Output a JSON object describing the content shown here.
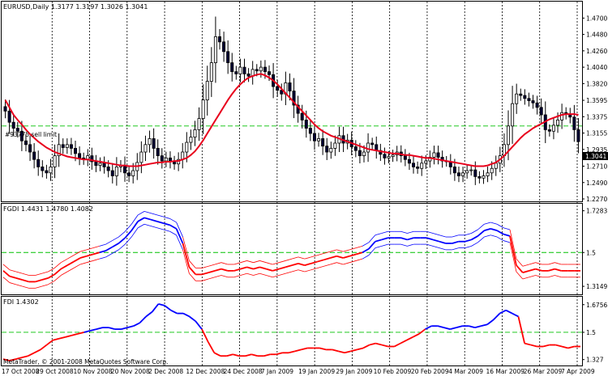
{
  "window": {
    "main_title": "EURUSD,Daily  1.3177 1.3197 1.3026 1.3041",
    "current_price": "1.3041",
    "order_label": "#93775 sell limit",
    "copyright": "MetaTrader, © 2001-2008 MetaQuotes Software Corp."
  },
  "colors": {
    "bull_candle": "#ffffff",
    "bear_candle": "#000033",
    "ma_line": "#e8001c",
    "fgdi_blue": "#0000ff",
    "fgdi_red": "#ff0000",
    "level_line": "#00c000",
    "grid": "#000000"
  },
  "chart_data": [
    {
      "type": "candlestick",
      "pane": "main",
      "title": "EURUSD,Daily",
      "ohlc_header": "1.3177 1.3197 1.3026 1.3041",
      "y_ticks": [
        "1.4700",
        "1.4480",
        "1.4260",
        "1.4040",
        "1.3820",
        "1.3595",
        "1.3375",
        "1.3155",
        "1.2935",
        "1.2710",
        "1.2490",
        "1.2270"
      ],
      "ylim": [
        1.227,
        1.478
      ],
      "order_level": 1.325,
      "order_label": "#93775 sell limit",
      "close_series": [
        1.345,
        1.33,
        1.322,
        1.318,
        1.305,
        1.3,
        1.29,
        1.28,
        1.27,
        1.265,
        1.262,
        1.27,
        1.285,
        1.3,
        1.296,
        1.3,
        1.295,
        1.288,
        1.282,
        1.28,
        1.285,
        1.277,
        1.272,
        1.275,
        1.27,
        1.265,
        1.258,
        1.27,
        1.272,
        1.262,
        1.258,
        1.265,
        1.276,
        1.29,
        1.3,
        1.308,
        1.295,
        1.285,
        1.278,
        1.282,
        1.277,
        1.274,
        1.28,
        1.29,
        1.303,
        1.31,
        1.32,
        1.335,
        1.36,
        1.385,
        1.41,
        1.445,
        1.438,
        1.425,
        1.41,
        1.398,
        1.395,
        1.404,
        1.395,
        1.392,
        1.401,
        1.399,
        1.404,
        1.398,
        1.394,
        1.378,
        1.373,
        1.368,
        1.383,
        1.372,
        1.353,
        1.342,
        1.333,
        1.322,
        1.315,
        1.305,
        1.308,
        1.298,
        1.29,
        1.295,
        1.302,
        1.312,
        1.302,
        1.306,
        1.297,
        1.292,
        1.285,
        1.29,
        1.302,
        1.3,
        1.292,
        1.287,
        1.282,
        1.284,
        1.286,
        1.29,
        1.285,
        1.28,
        1.275,
        1.27,
        1.268,
        1.275,
        1.278,
        1.283,
        1.289,
        1.283,
        1.278,
        1.277,
        1.27,
        1.262,
        1.258,
        1.262,
        1.265,
        1.266,
        1.257,
        1.255,
        1.258,
        1.262,
        1.268,
        1.275,
        1.285,
        1.3,
        1.325,
        1.355,
        1.368,
        1.366,
        1.362,
        1.359,
        1.356,
        1.35,
        1.34,
        1.32,
        1.318,
        1.326,
        1.333,
        1.343,
        1.341,
        1.337,
        1.32,
        1.304
      ],
      "ma_series": [
        1.36,
        1.35,
        1.34,
        1.333,
        1.327,
        1.32,
        1.314,
        1.309,
        1.304,
        1.3,
        1.296,
        1.293,
        1.29,
        1.288,
        1.286,
        1.284,
        1.283,
        1.282,
        1.281,
        1.28,
        1.28,
        1.279,
        1.278,
        1.277,
        1.276,
        1.275,
        1.274,
        1.273,
        1.272,
        1.272,
        1.271,
        1.271,
        1.271,
        1.272,
        1.273,
        1.274,
        1.275,
        1.276,
        1.276,
        1.277,
        1.277,
        1.278,
        1.278,
        1.28,
        1.282,
        1.286,
        1.291,
        1.298,
        1.306,
        1.315,
        1.324,
        1.333,
        1.342,
        1.351,
        1.36,
        1.368,
        1.375,
        1.381,
        1.386,
        1.39,
        1.392,
        1.394,
        1.395,
        1.393,
        1.39,
        1.386,
        1.381,
        1.375,
        1.369,
        1.363,
        1.357,
        1.351,
        1.345,
        1.339,
        1.333,
        1.327,
        1.322,
        1.318,
        1.315,
        1.312,
        1.31,
        1.308,
        1.306,
        1.304,
        1.302,
        1.3,
        1.298,
        1.296,
        1.294,
        1.293,
        1.292,
        1.291,
        1.29,
        1.289,
        1.288,
        1.288,
        1.287,
        1.286,
        1.286,
        1.285,
        1.284,
        1.283,
        1.282,
        1.282,
        1.281,
        1.28,
        1.279,
        1.278,
        1.277,
        1.276,
        1.275,
        1.274,
        1.273,
        1.272,
        1.271,
        1.271,
        1.271,
        1.272,
        1.274,
        1.276,
        1.28,
        1.285,
        1.291,
        1.297,
        1.303,
        1.309,
        1.314,
        1.318,
        1.322,
        1.325,
        1.328,
        1.331,
        1.334,
        1.336,
        1.338,
        1.34,
        1.341,
        1.341,
        1.341,
        1.34
      ]
    },
    {
      "type": "line",
      "pane": "fgdi",
      "title": "FGDI 1.4431 1.4780 1.4082",
      "y_ticks": [
        "1.7283",
        "1.5",
        "1.3149"
      ],
      "ylim": [
        1.28,
        1.74
      ],
      "level": 1.5,
      "series": [
        {
          "values": [
            1.4,
            1.37,
            1.36,
            1.35,
            1.34,
            1.34,
            1.35,
            1.36,
            1.38,
            1.41,
            1.43,
            1.45,
            1.47,
            1.48,
            1.49,
            1.5,
            1.51,
            1.53,
            1.55,
            1.58,
            1.62,
            1.67,
            1.69,
            1.68,
            1.67,
            1.66,
            1.65,
            1.63,
            1.55,
            1.42,
            1.38,
            1.38,
            1.39,
            1.4,
            1.41,
            1.4,
            1.4,
            1.41,
            1.42,
            1.41,
            1.42,
            1.41,
            1.4,
            1.41,
            1.42,
            1.43,
            1.44,
            1.43,
            1.44,
            1.45,
            1.46,
            1.47,
            1.48,
            1.47,
            1.48,
            1.49,
            1.5,
            1.52,
            1.56,
            1.57,
            1.58,
            1.58,
            1.58,
            1.57,
            1.58,
            1.58,
            1.58,
            1.57,
            1.56,
            1.55,
            1.55,
            1.56,
            1.56,
            1.57,
            1.59,
            1.62,
            1.63,
            1.62,
            1.6,
            1.59,
            1.43,
            1.39,
            1.4,
            1.41,
            1.4,
            1.4,
            1.41,
            1.4,
            1.4,
            1.4,
            1.4
          ]
        }
      ]
    },
    {
      "type": "line",
      "pane": "fdi",
      "title": "FDI 1.4302",
      "y_ticks": [
        "1.6756",
        "1.5",
        "1.327"
      ],
      "ylim": [
        1.31,
        1.7
      ],
      "level": 1.5,
      "series": [
        {
          "values": [
            1.33,
            1.32,
            1.33,
            1.34,
            1.35,
            1.37,
            1.39,
            1.42,
            1.45,
            1.46,
            1.47,
            1.48,
            1.49,
            1.5,
            1.51,
            1.52,
            1.53,
            1.53,
            1.52,
            1.52,
            1.53,
            1.54,
            1.56,
            1.6,
            1.63,
            1.68,
            1.67,
            1.64,
            1.62,
            1.62,
            1.6,
            1.57,
            1.52,
            1.44,
            1.37,
            1.35,
            1.35,
            1.36,
            1.35,
            1.35,
            1.36,
            1.35,
            1.35,
            1.36,
            1.36,
            1.37,
            1.37,
            1.38,
            1.39,
            1.4,
            1.4,
            1.4,
            1.39,
            1.39,
            1.38,
            1.37,
            1.38,
            1.39,
            1.4,
            1.42,
            1.43,
            1.42,
            1.41,
            1.41,
            1.43,
            1.45,
            1.47,
            1.49,
            1.52,
            1.54,
            1.54,
            1.53,
            1.52,
            1.53,
            1.54,
            1.54,
            1.53,
            1.54,
            1.55,
            1.58,
            1.62,
            1.64,
            1.62,
            1.6,
            1.43,
            1.42,
            1.41,
            1.41,
            1.42,
            1.42,
            1.41,
            1.4,
            1.41,
            1.41
          ]
        }
      ]
    }
  ],
  "date_labels": [
    "17 Oct 2008",
    "29 Oct 2008",
    "10 Nov 2008",
    "20 Nov 2008",
    "2 Dec 2008",
    "12 Dec 2008",
    "24 Dec 2008",
    "7 Jan 2009",
    "19 Jan 2009",
    "29 Jan 2009",
    "10 Feb 2009",
    "20 Feb 2009",
    "4 Mar 2009",
    "16 Mar 2009",
    "26 Mar 2009",
    "7 Apr 2009"
  ]
}
